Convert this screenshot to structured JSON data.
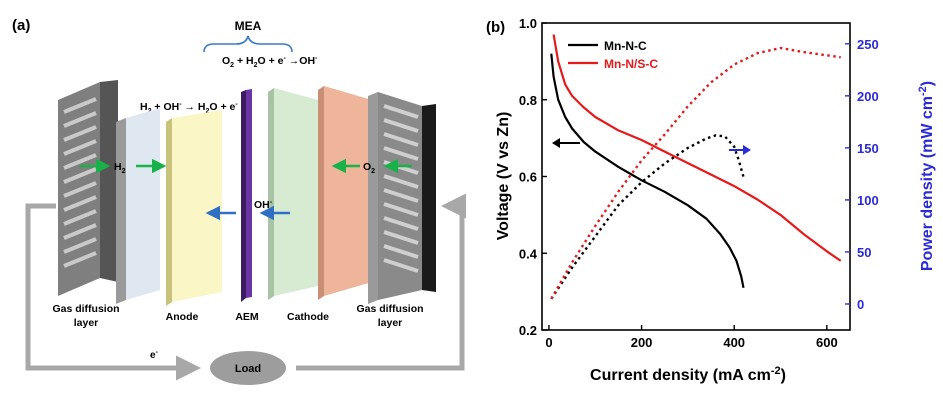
{
  "panel_a": {
    "label": "(a)",
    "mea_label": "MEA",
    "anode_reaction": {
      "p1": "H",
      "s1": "2",
      "p2": " + OH",
      "s2": "-",
      "p3": " → H",
      "s3": "2",
      "p4": "O + e",
      "s4": "-"
    },
    "cathode_reaction": {
      "p1": "O",
      "s1": "2",
      "p2": " + H",
      "s2": "2",
      "p3": "O + e",
      "s3": "-",
      "p4": " →OH",
      "s4": "-"
    },
    "h2_label": {
      "p1": "H",
      "s1": "2"
    },
    "o2_label": {
      "p1": "O",
      "s1": "2"
    },
    "oh_label": {
      "p1": "OH",
      "s1": "-"
    },
    "electron_label": {
      "p1": "e",
      "s1": "-"
    },
    "load_label": "Load",
    "layers": {
      "gdl_left_l1": "Gas diffusion",
      "gdl_left_l2": "layer",
      "anode": "Anode",
      "aem": "AEM",
      "cathode": "Cathode",
      "gdl_right_l1": "Gas diffusion",
      "gdl_right_l2": "layer"
    },
    "colors": {
      "anode": "#fbf6c6",
      "aem": "#5a2a8a",
      "cathode": "#d7ebd3",
      "gdl_back_left": "#dfe8f0",
      "gdl_back_right": "#eeb59a",
      "arrow_green": "#19b24a",
      "arrow_blue": "#2f6fc4"
    }
  },
  "chart_data": {
    "type": "line",
    "panel_label": "(b)",
    "xlabel": {
      "p1": "Current density (mA cm",
      "s1": "-2",
      "p2": ")"
    },
    "ylabel": "Voltage (V vs Zn)",
    "y2label": {
      "p1": "Power density (mW cm",
      "s1": "-2",
      "p2": ")"
    },
    "xlim": [
      -15,
      650
    ],
    "ylim": [
      0.2,
      1.0
    ],
    "y2lim": [
      -25,
      270
    ],
    "x_ticks": [
      0,
      200,
      400,
      600
    ],
    "y_ticks": [
      0.2,
      0.4,
      0.6,
      0.8,
      1.0
    ],
    "y_tick_labels": [
      "0.2",
      "0.4",
      "0.6",
      "0.8",
      "1.0"
    ],
    "y2_ticks": [
      0,
      50,
      100,
      150,
      200,
      250
    ],
    "legend": [
      "Mn-N-C",
      "Mn-N/S-C"
    ],
    "legend_position": "top-left",
    "series": [
      {
        "name": "Mn-N-C",
        "color": "#000000",
        "axis": "left",
        "style": "solid",
        "x": [
          5,
          10,
          20,
          35,
          50,
          75,
          100,
          150,
          200,
          250,
          300,
          340,
          370,
          390,
          405,
          415,
          420
        ],
        "y": [
          0.92,
          0.86,
          0.8,
          0.755,
          0.725,
          0.69,
          0.665,
          0.625,
          0.59,
          0.56,
          0.525,
          0.49,
          0.45,
          0.415,
          0.38,
          0.34,
          0.31
        ]
      },
      {
        "name": "Mn-N/S-C",
        "color": "#e41a1c",
        "axis": "left",
        "style": "solid",
        "x": [
          10,
          20,
          35,
          50,
          75,
          100,
          150,
          200,
          250,
          300,
          350,
          400,
          450,
          500,
          550,
          600,
          630
        ],
        "y": [
          0.97,
          0.9,
          0.84,
          0.81,
          0.78,
          0.755,
          0.72,
          0.695,
          0.665,
          0.635,
          0.605,
          0.575,
          0.54,
          0.5,
          0.45,
          0.405,
          0.38
        ]
      },
      {
        "name": "Mn-N-C power",
        "color": "#000000",
        "axis": "right",
        "style": "dotted",
        "x": [
          5,
          50,
          100,
          150,
          200,
          250,
          300,
          340,
          360,
          380,
          400,
          410,
          420
        ],
        "y": [
          5,
          35,
          65,
          95,
          117,
          135,
          150,
          159,
          162,
          161,
          151,
          138,
          122
        ]
      },
      {
        "name": "Mn-N/S-C power",
        "color": "#e41a1c",
        "axis": "right",
        "style": "dotted",
        "x": [
          5,
          50,
          100,
          150,
          200,
          250,
          300,
          350,
          400,
          450,
          500,
          550,
          600,
          630
        ],
        "y": [
          5,
          40,
          75,
          108,
          138,
          163,
          190,
          213,
          230,
          241,
          246,
          242,
          239,
          237
        ]
      }
    ],
    "colors": {
      "left_axis": "#000000",
      "right_axis": "#2b2bd6"
    }
  }
}
